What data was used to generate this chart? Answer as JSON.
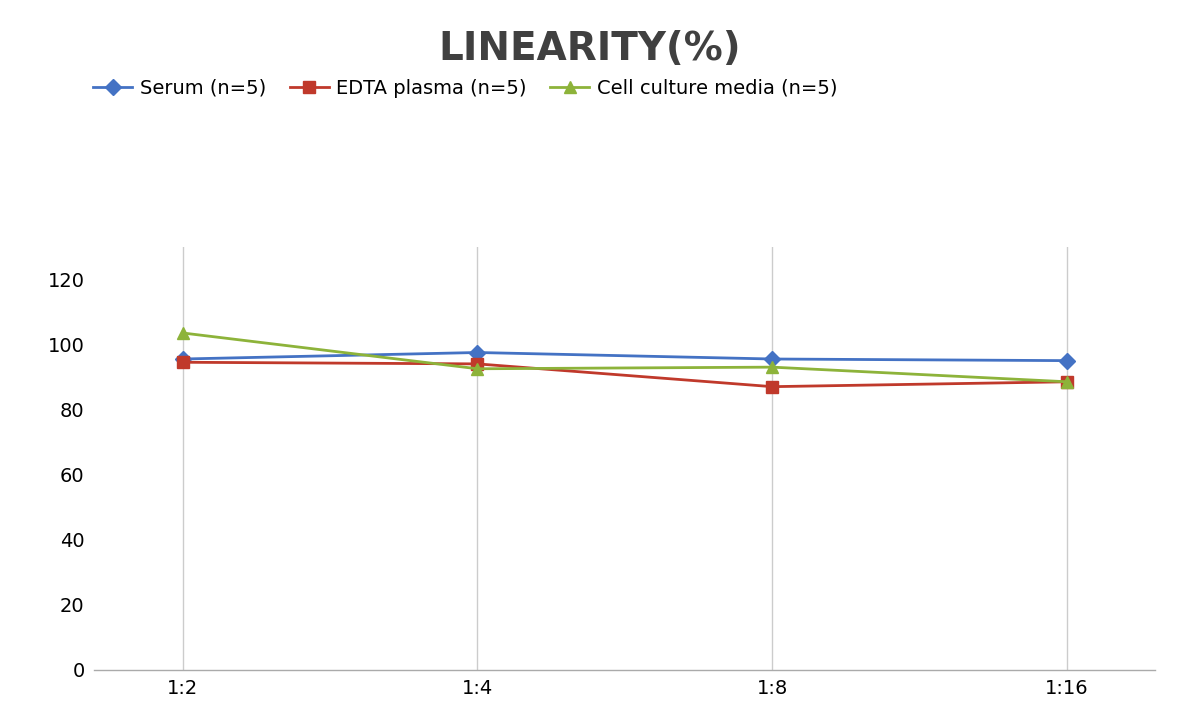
{
  "title": "LINEARITY(%)",
  "title_fontsize": 28,
  "title_fontweight": "bold",
  "title_color": "#404040",
  "x_labels": [
    "1:2",
    "1:4",
    "1:8",
    "1:16"
  ],
  "x_values": [
    0,
    1,
    2,
    3
  ],
  "series": [
    {
      "label": "Serum (n=5)",
      "values": [
        95.5,
        97.5,
        95.5,
        95.0
      ],
      "color": "#4472C4",
      "marker": "D",
      "markersize": 8,
      "linewidth": 2
    },
    {
      "label": "EDTA plasma (n=5)",
      "values": [
        94.5,
        94.0,
        87.0,
        88.5
      ],
      "color": "#C0392B",
      "marker": "s",
      "markersize": 8,
      "linewidth": 2
    },
    {
      "label": "Cell culture media (n=5)",
      "values": [
        103.5,
        92.5,
        93.0,
        88.5
      ],
      "color": "#8DB33A",
      "marker": "^",
      "markersize": 8,
      "linewidth": 2
    }
  ],
  "ylim": [
    0,
    130
  ],
  "yticks": [
    0,
    20,
    40,
    60,
    80,
    100,
    120
  ],
  "grid_color": "#CCCCCC",
  "grid_linewidth": 1,
  "background_color": "#FFFFFF",
  "legend_fontsize": 14,
  "tick_fontsize": 14
}
